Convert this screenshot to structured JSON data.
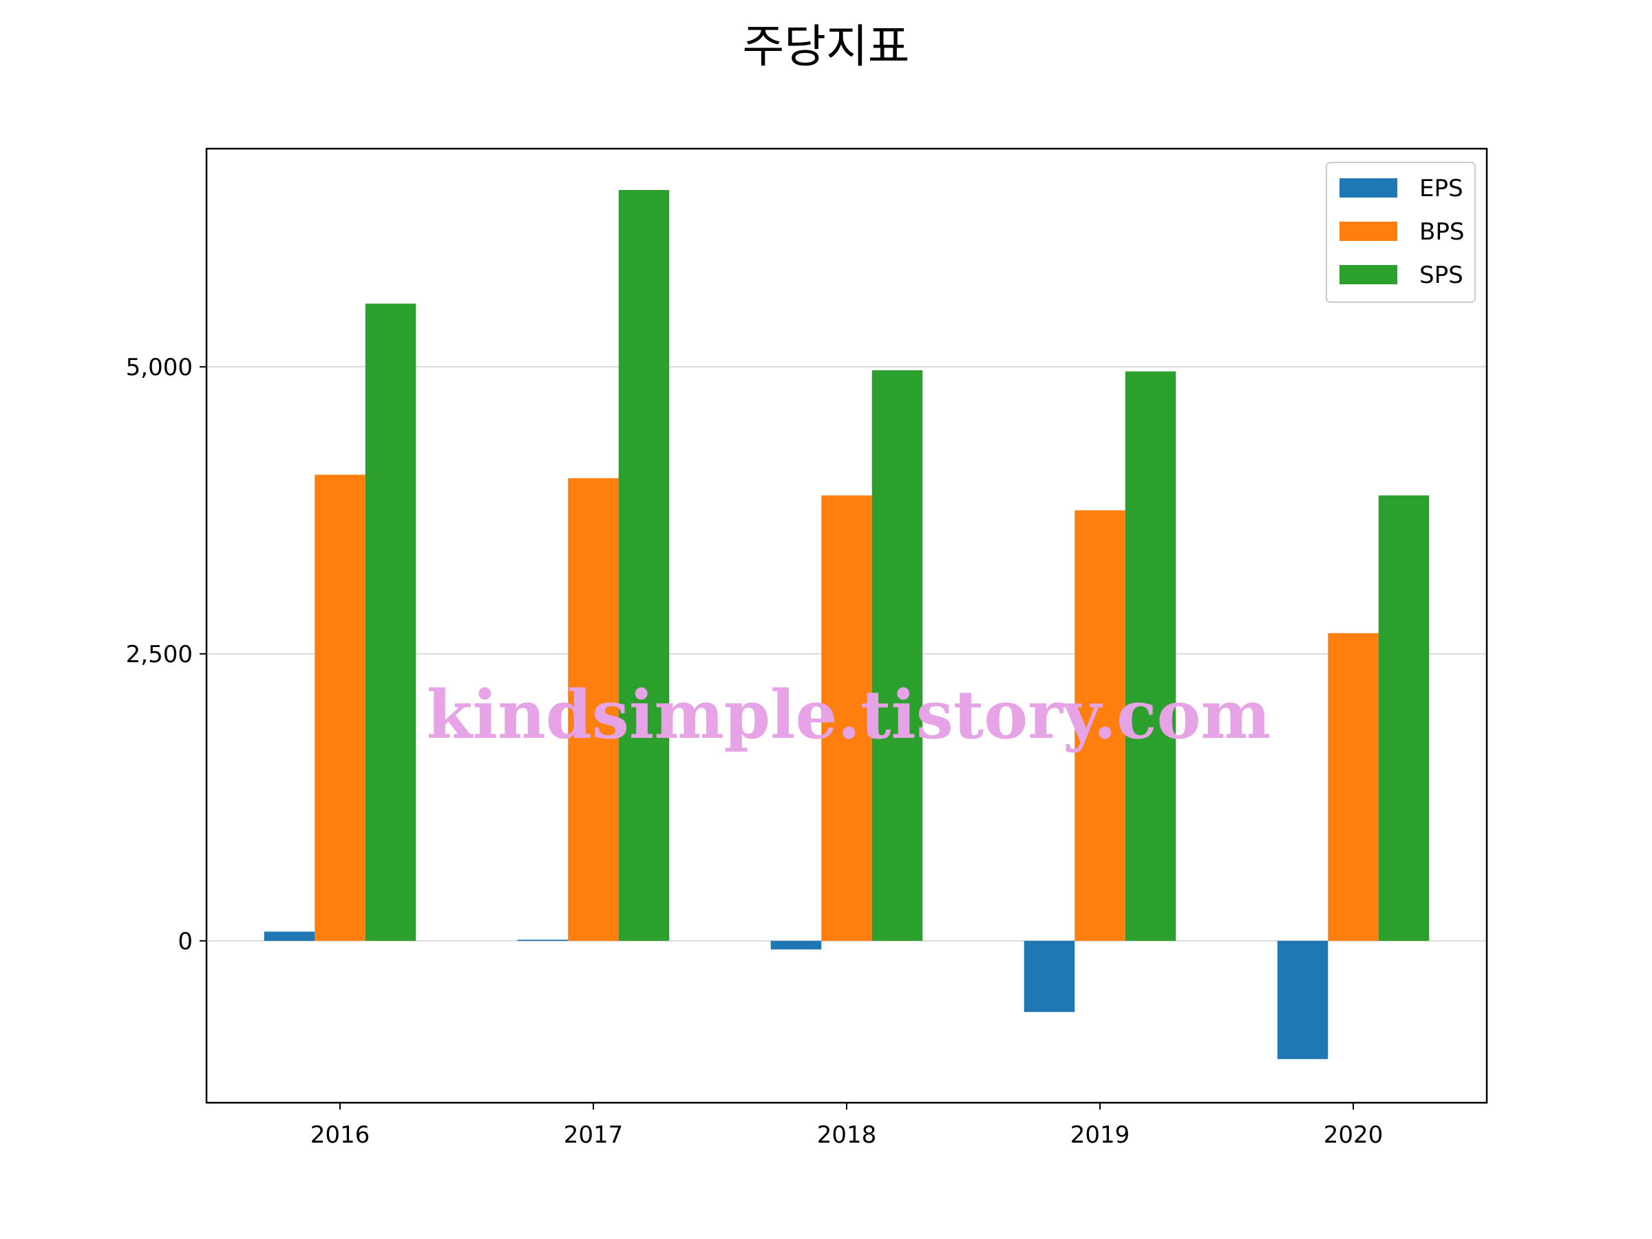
{
  "chart_data": {
    "type": "bar",
    "title": "주당지표",
    "categories": [
      "2016",
      "2017",
      "2018",
      "2019",
      "2020"
    ],
    "series": [
      {
        "name": "EPS",
        "color": "#1f77b4",
        "values": [
          80,
          10,
          -75,
          -620,
          -1030
        ]
      },
      {
        "name": "BPS",
        "color": "#ff7f0e",
        "values": [
          4060,
          4030,
          3880,
          3750,
          2680
        ]
      },
      {
        "name": "SPS",
        "color": "#2ca02c",
        "values": [
          5550,
          6540,
          4970,
          4960,
          3880
        ]
      }
    ],
    "yticks": [
      0,
      2500,
      5000
    ],
    "ytick_labels": [
      "0",
      "2,500",
      "5,000"
    ],
    "ylim": [
      -1410,
      6900
    ],
    "grid": "y",
    "legend": "top-right"
  },
  "watermark": "kindsimple.tistory.com"
}
